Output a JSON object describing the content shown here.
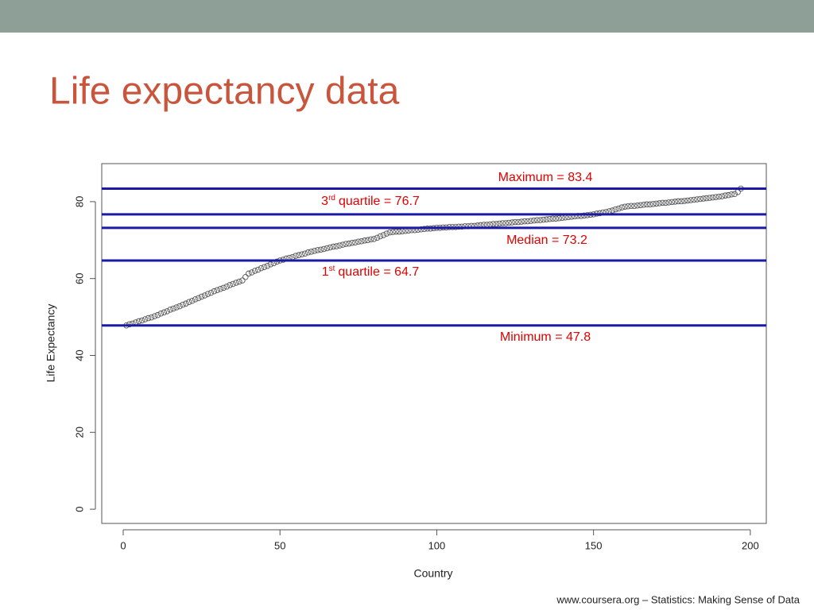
{
  "chart_data": {
    "type": "scatter",
    "title": "Life expectancy data",
    "x_label": "Country",
    "y_label": "Life Expectancy",
    "footer": "www.coursera.org – Statistics: Making Sense of Data",
    "xlim": [
      -6.84,
      205.1
    ],
    "ylim": [
      -3.7,
      89.9
    ],
    "xticks": [
      0,
      50,
      100,
      150,
      200
    ],
    "yticks": [
      0,
      20,
      40,
      60,
      80
    ],
    "point_color": "#555555",
    "line_color": "#1a1aa6",
    "label_color": "#e00000",
    "x": [
      1,
      2,
      3,
      4,
      5,
      6,
      7,
      8,
      9,
      10,
      11,
      12,
      13,
      14,
      15,
      16,
      17,
      18,
      19,
      20,
      21,
      22,
      23,
      24,
      25,
      26,
      27,
      28,
      29,
      30,
      31,
      32,
      33,
      34,
      35,
      36,
      37,
      38,
      39,
      40,
      41,
      42,
      43,
      44,
      45,
      46,
      47,
      48,
      49,
      50,
      51,
      52,
      53,
      54,
      55,
      56,
      57,
      58,
      59,
      60,
      61,
      62,
      63,
      64,
      65,
      66,
      67,
      68,
      69,
      70,
      71,
      72,
      73,
      74,
      75,
      76,
      77,
      78,
      79,
      80,
      81,
      82,
      83,
      84,
      85,
      86,
      87,
      88,
      89,
      90,
      91,
      92,
      93,
      94,
      95,
      96,
      97,
      98,
      99,
      100,
      101,
      102,
      103,
      104,
      105,
      106,
      107,
      108,
      109,
      110,
      111,
      112,
      113,
      114,
      115,
      116,
      117,
      118,
      119,
      120,
      121,
      122,
      123,
      124,
      125,
      126,
      127,
      128,
      129,
      130,
      131,
      132,
      133,
      134,
      135,
      136,
      137,
      138,
      139,
      140,
      141,
      142,
      143,
      144,
      145,
      146,
      147,
      148,
      149,
      150,
      151,
      152,
      153,
      154,
      155,
      156,
      157,
      158,
      159,
      160,
      161,
      162,
      163,
      164,
      165,
      166,
      167,
      168,
      169,
      170,
      171,
      172,
      173,
      174,
      175,
      176,
      177,
      178,
      179,
      180,
      181,
      182,
      183,
      184,
      185,
      186,
      187,
      188,
      189,
      190,
      191,
      192,
      193,
      194,
      195,
      196,
      197
    ],
    "values": [
      47.8,
      48.1,
      48.3,
      48.6,
      48.9,
      49.1,
      49.4,
      49.7,
      49.9,
      50.2,
      50.5,
      50.9,
      51.2,
      51.5,
      51.9,
      52.2,
      52.5,
      52.8,
      53.2,
      53.5,
      53.9,
      54.2,
      54.6,
      54.9,
      55.3,
      55.6,
      56.0,
      56.3,
      56.7,
      57.0,
      57.3,
      57.6,
      57.9,
      58.3,
      58.6,
      58.9,
      59.2,
      59.5,
      60.4,
      61.3,
      61.6,
      62.0,
      62.3,
      62.7,
      63.0,
      63.3,
      63.7,
      64.0,
      64.4,
      64.7,
      64.9,
      65.2,
      65.4,
      65.6,
      65.9,
      66.1,
      66.3,
      66.5,
      66.8,
      67.0,
      67.2,
      67.4,
      67.5,
      67.7,
      67.9,
      68.1,
      68.3,
      68.4,
      68.6,
      68.8,
      69.0,
      69.1,
      69.3,
      69.4,
      69.6,
      69.7,
      69.9,
      70.0,
      70.2,
      70.3,
      70.6,
      71.0,
      71.3,
      71.7,
      72.0,
      72.1,
      72.2,
      72.2,
      72.3,
      72.4,
      72.5,
      72.6,
      72.6,
      72.7,
      72.8,
      72.9,
      73.0,
      73.0,
      73.1,
      73.2,
      73.2,
      73.3,
      73.3,
      73.4,
      73.4,
      73.4,
      73.5,
      73.5,
      73.6,
      73.6,
      73.7,
      73.7,
      73.8,
      73.9,
      74.0,
      74.0,
      74.1,
      74.2,
      74.2,
      74.3,
      74.4,
      74.4,
      74.5,
      74.6,
      74.7,
      74.7,
      74.8,
      74.9,
      74.9,
      75.0,
      75.1,
      75.2,
      75.2,
      75.3,
      75.4,
      75.5,
      75.6,
      75.6,
      75.7,
      75.8,
      75.9,
      76.0,
      76.1,
      76.2,
      76.3,
      76.3,
      76.4,
      76.5,
      76.6,
      76.7,
      76.9,
      77.0,
      77.2,
      77.3,
      77.5,
      77.7,
      78.0,
      78.2,
      78.5,
      78.7,
      78.8,
      78.9,
      78.9,
      79.0,
      79.1,
      79.2,
      79.3,
      79.3,
      79.4,
      79.5,
      79.6,
      79.7,
      79.7,
      79.8,
      79.9,
      80.0,
      80.1,
      80.1,
      80.2,
      80.3,
      80.4,
      80.5,
      80.6,
      80.7,
      80.8,
      80.9,
      81.0,
      81.1,
      81.2,
      81.3,
      81.4,
      81.6,
      81.7,
      81.9,
      82.0,
      82.5,
      83.4
    ],
    "annotations": [
      {
        "text": "Maximum = 83.4",
        "value": 83.4
      },
      {
        "prefix": "3",
        "sup": "rd",
        "text": "quartile = 76.7",
        "value": 76.7
      },
      {
        "text": "Median = 73.2",
        "value": 73.2
      },
      {
        "prefix": "1",
        "sup": "st",
        "text": "quartile = 64.7",
        "value": 64.7
      },
      {
        "text": "Minimum = 47.8",
        "value": 47.8
      }
    ]
  }
}
